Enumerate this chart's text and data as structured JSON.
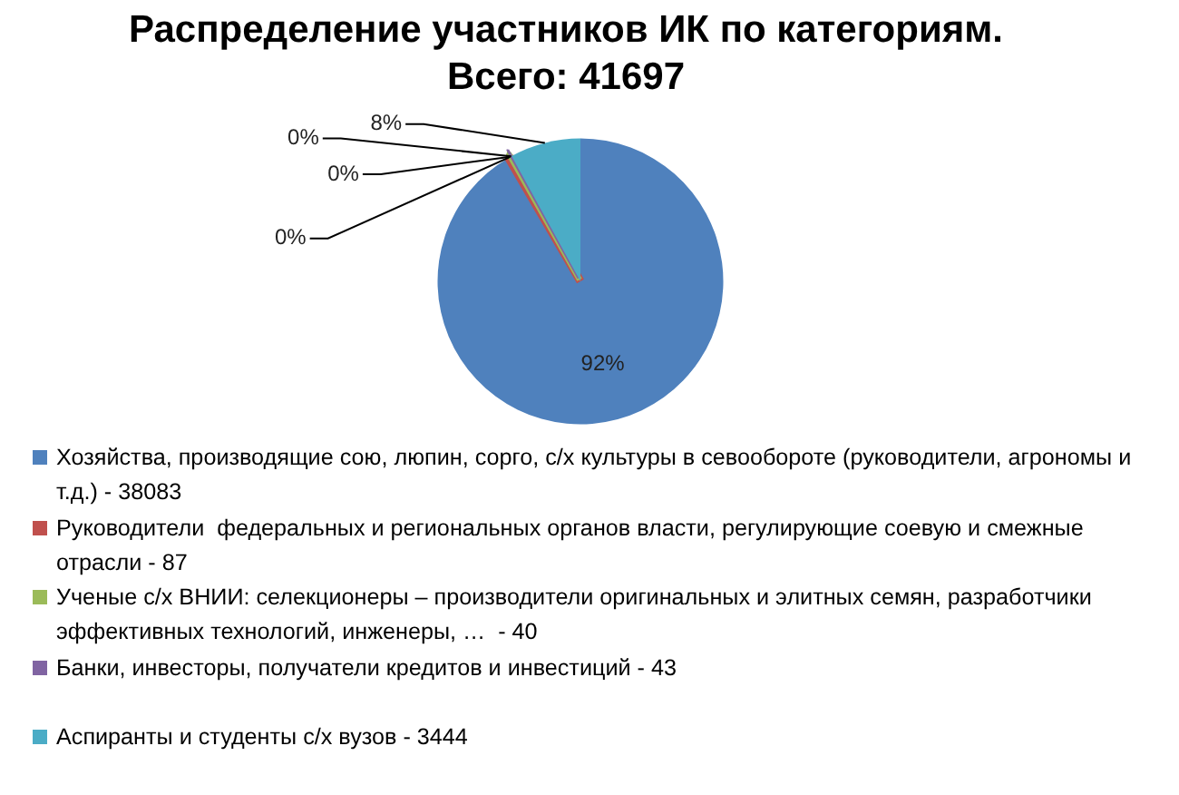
{
  "chart_data": {
    "type": "pie",
    "title": "Распределение участников ИК по категориям. Всего: 41697",
    "categories": [
      "Хозяйства, производящие сою, люпин, сорго, с/х культуры в севообороте (руководители, агрономы и т.д.) - 38083",
      "Руководители  федеральных и региональных органов власти, регулирующие соевую и смежные отрасли - 87",
      "Ученые с/х ВНИИ: селекционеры – производители оригинальных и элитных семян, разработчики эффективных технологий, инженеры, …  - 40",
      "Банки, инвесторы, получатели кредитов и инвестиций - 43",
      "Аспиранты и студенты с/х вузов - 3444"
    ],
    "values": [
      91.6,
      0.2,
      0.1,
      0.1,
      8
    ],
    "colors": [
      "#4f81bd",
      "#c0504d",
      "#9bbb59",
      "#8064a2",
      "#4bacc6"
    ],
    "value_labels": [
      "92%",
      "0%",
      "0%",
      "0%",
      "8%"
    ],
    "legend": "bottom"
  }
}
